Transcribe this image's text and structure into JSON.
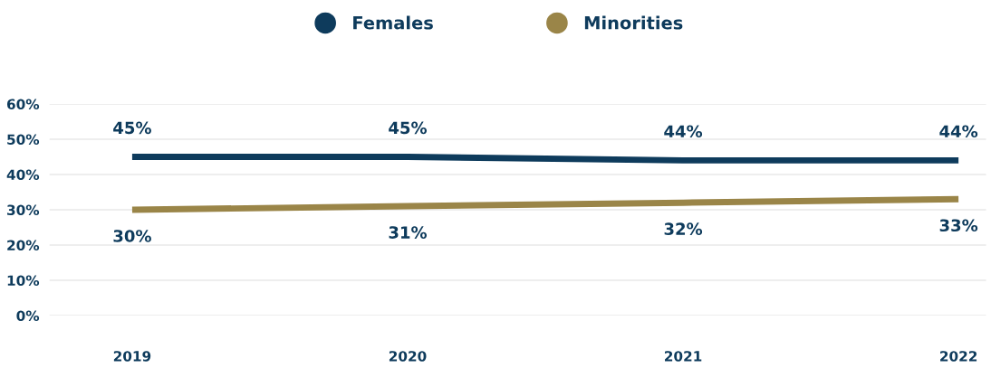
{
  "chart_data": {
    "type": "line",
    "categories": [
      "2019",
      "2020",
      "2021",
      "2022"
    ],
    "series": [
      {
        "name": "Females",
        "color": "#0e3b5c",
        "values": [
          45,
          45,
          44,
          44
        ],
        "value_labels": [
          "45%",
          "45%",
          "44%",
          "44%"
        ]
      },
      {
        "name": "Minorities",
        "color": "#9a8548",
        "values": [
          30,
          31,
          32,
          33
        ],
        "value_labels": [
          "30%",
          "31%",
          "32%",
          "33%"
        ]
      }
    ],
    "ylim": [
      0,
      60
    ],
    "yticks": [
      {
        "value": 0,
        "label": "0%"
      },
      {
        "value": 10,
        "label": "10%"
      },
      {
        "value": 20,
        "label": "20%"
      },
      {
        "value": 30,
        "label": "30%"
      },
      {
        "value": 40,
        "label": "40%"
      },
      {
        "value": 50,
        "label": "50%"
      },
      {
        "value": 60,
        "label": "60%"
      }
    ],
    "grid": "y",
    "legend": "top",
    "marker": "none",
    "line_style": "solid"
  }
}
